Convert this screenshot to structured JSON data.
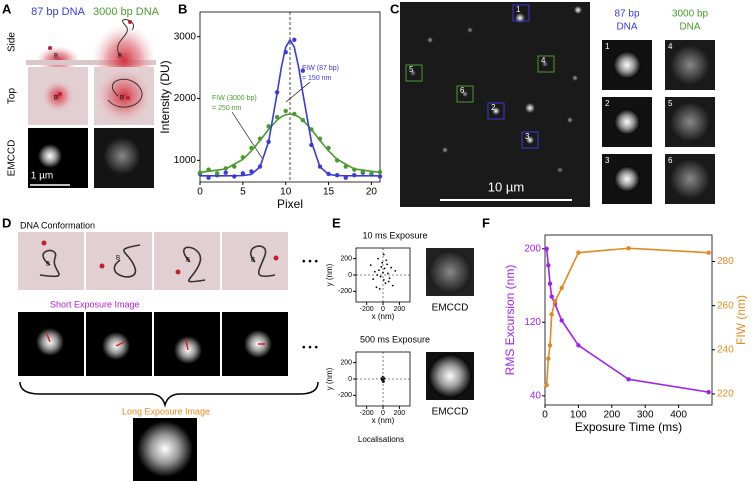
{
  "panels": {
    "A": {
      "label": "A",
      "columns": [
        "87 bp DNA",
        "3000 bp DNA"
      ],
      "rows": [
        "Side",
        "Top",
        "EMCCD"
      ],
      "scale_bar": "1 µm",
      "bead": "B"
    },
    "B": {
      "label": "B",
      "annotations": [
        [
          "FIW (3000 bp)",
          "= 250 nm"
        ],
        [
          "FIW (87 bp)",
          "= 150 nm"
        ]
      ]
    },
    "C": {
      "label": "C",
      "scale_bar": "10 µm",
      "columns": [
        [
          "87 bp",
          "DNA"
        ],
        [
          "3000 bp",
          "DNA"
        ]
      ],
      "boxes": [
        "1",
        "2",
        "3",
        "4",
        "5",
        "6"
      ]
    },
    "D": {
      "label": "D",
      "rows": [
        "DNA Conformation",
        "Short Exposure Image",
        "Long Exposure Image"
      ],
      "ellipsis": "• • •",
      "bead": "B"
    },
    "E": {
      "label": "E",
      "image_label": "EMCCD",
      "footer": "Localisations"
    },
    "F": {
      "label": "F"
    }
  },
  "chart_data": [
    {
      "type": "line",
      "xlabel": "Pixel",
      "ylabel": "Intensity (DU)",
      "x": [
        0,
        1,
        2,
        3,
        4,
        5,
        6,
        7,
        8,
        9,
        10,
        11,
        12,
        13,
        14,
        15,
        16,
        17,
        18,
        19,
        20,
        21
      ],
      "xlim": [
        0,
        21
      ],
      "xticks": [
        0,
        5,
        10,
        15,
        20
      ],
      "ylim": [
        650,
        3400
      ],
      "yticks": [
        1000,
        2000,
        3000
      ],
      "reference_x": 10.5,
      "series": [
        {
          "color": "#3b3bd6",
          "style": "markers",
          "values": [
            780,
            720,
            760,
            800,
            740,
            790,
            820,
            900,
            1300,
            2100,
            2750,
            2950,
            2450,
            1250,
            900,
            780,
            760,
            720,
            760,
            800,
            780,
            740
          ]
        },
        {
          "color": "#4a9a30",
          "style": "markers",
          "values": [
            800,
            850,
            790,
            870,
            900,
            1050,
            1200,
            1350,
            1550,
            1700,
            1800,
            1750,
            1650,
            1500,
            1350,
            1200,
            1000,
            900,
            850,
            820,
            780,
            810
          ]
        },
        {
          "color": "#4a9a30",
          "style": "line",
          "x": [
            0,
            3,
            5,
            6,
            7,
            8,
            9,
            9.5,
            10,
            10.5,
            11,
            11.5,
            12,
            13,
            14,
            15,
            16,
            18,
            21
          ],
          "values": [
            804,
            861,
            1017,
            1154,
            1322,
            1500,
            1651,
            1705,
            1739,
            1750,
            1739,
            1705,
            1651,
            1500,
            1322,
            1154,
            1017,
            861,
            804
          ]
        },
        {
          "color": "#3b3bd6",
          "style": "line",
          "x": [
            0,
            3,
            5,
            6,
            7,
            8,
            9,
            9.5,
            10,
            10.5,
            11,
            11.5,
            12,
            13,
            14,
            15,
            16,
            18,
            21
          ],
          "values": [
            750,
            750,
            753,
            774,
            895,
            1298,
            2085,
            2512,
            2831,
            2950,
            2831,
            2512,
            2085,
            1298,
            895,
            774,
            753,
            750,
            750
          ]
        }
      ]
    },
    {
      "type": "scatter",
      "title": "10 ms Exposure",
      "xlabel": "x (nm)",
      "ylabel": "y (nm)",
      "xlim": [
        -330,
        330
      ],
      "xticks": [
        -200,
        0,
        200
      ],
      "ylim": [
        -330,
        330
      ],
      "yticks": [
        -200,
        0,
        200
      ],
      "series": [
        {
          "color": "#000000",
          "style": "markers",
          "x": [
            -150,
            -100,
            -80,
            -60,
            -50,
            -30,
            -20,
            -10,
            0,
            10,
            20,
            30,
            40,
            60,
            80,
            100,
            120,
            150,
            -120,
            50,
            -40,
            70,
            10,
            -70
          ],
          "values": [
            120,
            40,
            -150,
            200,
            60,
            -20,
            100,
            150,
            30,
            -60,
            80,
            -100,
            180,
            20,
            -40,
            90,
            -130,
            50,
            -50,
            130,
            -170,
            -80,
            250,
            0
          ]
        }
      ]
    },
    {
      "type": "scatter",
      "title": "500 ms Exposure",
      "xlabel": "x (nm)",
      "ylabel": "y (nm)",
      "xlim": [
        -330,
        330
      ],
      "xticks": [
        -200,
        0,
        200
      ],
      "ylim": [
        -330,
        330
      ],
      "yticks": [
        -200,
        0,
        200
      ],
      "series": [
        {
          "color": "#000000",
          "style": "markers",
          "x": [
            -20,
            -10,
            -5,
            0,
            5,
            10,
            15,
            -15,
            20,
            0
          ],
          "values": [
            10,
            -20,
            30,
            0,
            -10,
            20,
            -30,
            -5,
            5,
            -40
          ]
        }
      ]
    },
    {
      "type": "line",
      "xlabel": "Exposure Time (ms)",
      "ylabel": "RMS Excursion (nm)",
      "y2label": "FIW (nm)",
      "ylabel_color": "#a020f0",
      "y2label_color": "#e08a20",
      "x": [
        5,
        10,
        15,
        20,
        30,
        50,
        100,
        250,
        490
      ],
      "xlim": [
        0,
        500
      ],
      "xticks": [
        0,
        100,
        200,
        300,
        400
      ],
      "ylim": [
        30,
        215
      ],
      "yticks": [
        40,
        120,
        200
      ],
      "y2lim": [
        215,
        292
      ],
      "y2ticks": [
        220,
        240,
        260,
        280
      ],
      "series": [
        {
          "color": "#a020f0",
          "style": "line markers",
          "values": [
            200,
            182,
            162,
            148,
            140,
            122,
            95,
            58,
            44
          ]
        },
        {
          "color": "#e08a20",
          "style": "line markers",
          "axis": "y2",
          "values": [
            224,
            236,
            242,
            256,
            262,
            268,
            284,
            286,
            284
          ]
        }
      ]
    }
  ]
}
